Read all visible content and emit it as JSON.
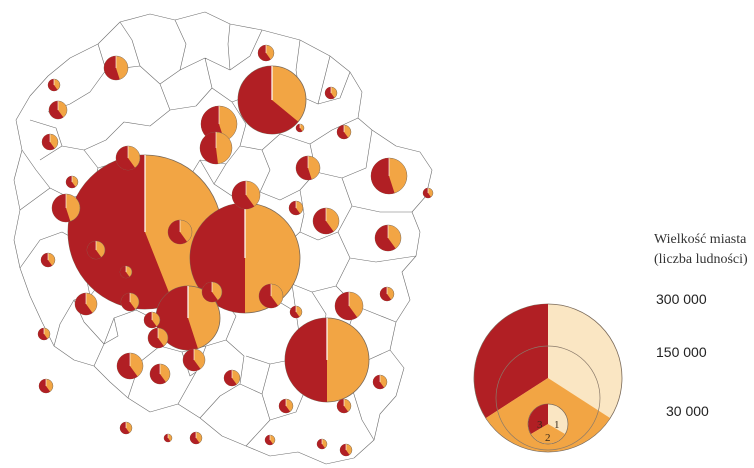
{
  "legend": {
    "title_line1": "Wielkość miasta",
    "title_line2": "(liczba ludności)",
    "size_labels": [
      "300 000",
      "150 000",
      "30 000"
    ],
    "segment_numbers": [
      "1",
      "2",
      "3"
    ]
  },
  "colors": {
    "dark_red": "#b11f24",
    "orange": "#f2a544",
    "cream": "#fae6c3",
    "border": "#7a6a5a",
    "background": "#ffffff"
  }
}
